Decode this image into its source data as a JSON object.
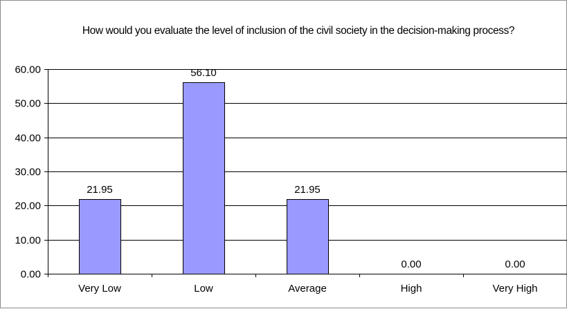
{
  "chart_data": {
    "type": "bar",
    "title": "How would you evaluate the level of inclusion of the civil society in the decision-making process?",
    "xlabel": "",
    "ylabel": "",
    "categories": [
      "Very Low",
      "Low",
      "Average",
      "High",
      "Very High"
    ],
    "values": [
      21.95,
      56.1,
      21.95,
      0.0,
      0.0
    ],
    "data_labels": [
      "21.95",
      "56.10",
      "21.95",
      "0.00",
      "0.00"
    ],
    "ylim": [
      0,
      60
    ],
    "yticks": [
      0,
      10,
      20,
      30,
      40,
      50,
      60
    ],
    "ytick_labels": [
      "0.00",
      "10.00",
      "20.00",
      "30.00",
      "40.00",
      "50.00",
      "60.00"
    ],
    "grid": "horizontal",
    "legend": "none",
    "bar_color": "#9999FF",
    "bar_edge_color": "#000000",
    "gridline_color": "#000000"
  }
}
